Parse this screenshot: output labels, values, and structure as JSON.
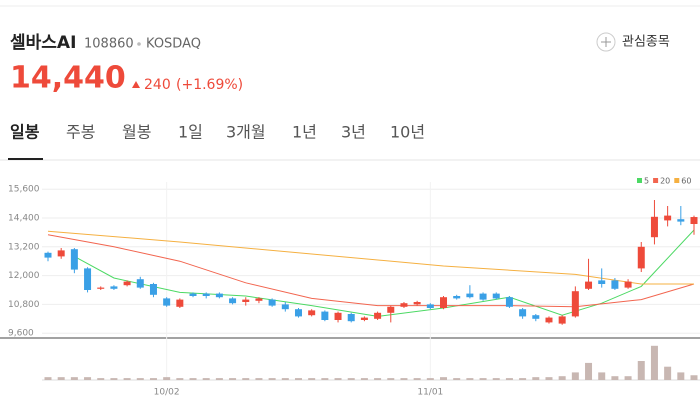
{
  "header": {
    "name": "셀바스AI",
    "code": "108860",
    "market": "KOSDAQ",
    "watch_label": "관심종목",
    "price": "14,440",
    "change": "240",
    "change_pct": "(+1.69%)"
  },
  "tabs": [
    "일봉",
    "주봉",
    "월봉",
    "1일",
    "3개월",
    "1년",
    "3년",
    "10년"
  ],
  "chart_data": {
    "type": "candlestick",
    "categories": [
      null,
      null,
      null,
      null,
      null,
      null,
      null,
      null,
      null,
      "10/02",
      null,
      null,
      null,
      null,
      null,
      null,
      null,
      null,
      null,
      null,
      null,
      null,
      null,
      null,
      null,
      null,
      null,
      null,
      null,
      "11/01",
      null,
      null,
      null,
      null,
      null,
      null,
      null,
      null,
      null,
      null,
      null,
      null,
      null,
      null,
      null,
      null,
      null,
      null,
      null,
      null
    ],
    "up_color": "#ee4a3a",
    "down_color": "#3aa0e6",
    "candles": [
      {
        "o": 12950,
        "h": 13000,
        "l": 12600,
        "c": 12750
      },
      {
        "o": 12800,
        "h": 13150,
        "l": 12700,
        "c": 13050
      },
      {
        "o": 13100,
        "h": 13150,
        "l": 12100,
        "c": 12250
      },
      {
        "o": 12300,
        "h": 12350,
        "l": 11300,
        "c": 11400
      },
      {
        "o": 11450,
        "h": 11550,
        "l": 11400,
        "c": 11500
      },
      {
        "o": 11550,
        "h": 11600,
        "l": 11400,
        "c": 11450
      },
      {
        "o": 11600,
        "h": 11800,
        "l": 11550,
        "c": 11750
      },
      {
        "o": 11850,
        "h": 11950,
        "l": 11450,
        "c": 11500
      },
      {
        "o": 11650,
        "h": 11700,
        "l": 11100,
        "c": 11200
      },
      {
        "o": 11050,
        "h": 11100,
        "l": 10700,
        "c": 10750
      },
      {
        "o": 10700,
        "h": 11050,
        "l": 10650,
        "c": 11000
      },
      {
        "o": 11250,
        "h": 11300,
        "l": 11100,
        "c": 11150
      },
      {
        "o": 11250,
        "h": 11300,
        "l": 11050,
        "c": 11150
      },
      {
        "o": 11250,
        "h": 11300,
        "l": 11050,
        "c": 11100
      },
      {
        "o": 11050,
        "h": 11100,
        "l": 10800,
        "c": 10850
      },
      {
        "o": 10900,
        "h": 11100,
        "l": 10750,
        "c": 11000
      },
      {
        "o": 10950,
        "h": 11100,
        "l": 10850,
        "c": 11050
      },
      {
        "o": 11000,
        "h": 11050,
        "l": 10700,
        "c": 10750
      },
      {
        "o": 10800,
        "h": 10900,
        "l": 10500,
        "c": 10600
      },
      {
        "o": 10600,
        "h": 10650,
        "l": 10250,
        "c": 10300
      },
      {
        "o": 10350,
        "h": 10600,
        "l": 10300,
        "c": 10550
      },
      {
        "o": 10500,
        "h": 10550,
        "l": 10100,
        "c": 10150
      },
      {
        "o": 10150,
        "h": 10500,
        "l": 10050,
        "c": 10450
      },
      {
        "o": 10400,
        "h": 10450,
        "l": 10050,
        "c": 10100
      },
      {
        "o": 10150,
        "h": 10300,
        "l": 10100,
        "c": 10250
      },
      {
        "o": 10200,
        "h": 10500,
        "l": 10150,
        "c": 10450
      },
      {
        "o": 10450,
        "h": 10750,
        "l": 10050,
        "c": 10700
      },
      {
        "o": 10700,
        "h": 10900,
        "l": 10650,
        "c": 10850
      },
      {
        "o": 10800,
        "h": 10950,
        "l": 10750,
        "c": 10900
      },
      {
        "o": 10800,
        "h": 10850,
        "l": 10600,
        "c": 10650
      },
      {
        "o": 10650,
        "h": 11150,
        "l": 10600,
        "c": 11100
      },
      {
        "o": 11150,
        "h": 11200,
        "l": 11000,
        "c": 11050
      },
      {
        "o": 11250,
        "h": 11600,
        "l": 11050,
        "c": 11100
      },
      {
        "o": 11250,
        "h": 11300,
        "l": 10950,
        "c": 11000
      },
      {
        "o": 11250,
        "h": 11300,
        "l": 11000,
        "c": 11050
      },
      {
        "o": 11100,
        "h": 11150,
        "l": 10650,
        "c": 10700
      },
      {
        "o": 10600,
        "h": 10650,
        "l": 10200,
        "c": 10300
      },
      {
        "o": 10350,
        "h": 10400,
        "l": 10100,
        "c": 10200
      },
      {
        "o": 10050,
        "h": 10300,
        "l": 10000,
        "c": 10250
      },
      {
        "o": 10000,
        "h": 10350,
        "l": 9950,
        "c": 10300
      },
      {
        "o": 10300,
        "h": 11550,
        "l": 10250,
        "c": 11350
      },
      {
        "o": 11450,
        "h": 12700,
        "l": 11400,
        "c": 11750
      },
      {
        "o": 11800,
        "h": 12300,
        "l": 11500,
        "c": 11650
      },
      {
        "o": 11800,
        "h": 11900,
        "l": 11400,
        "c": 11450
      },
      {
        "o": 11500,
        "h": 11850,
        "l": 11450,
        "c": 11750
      },
      {
        "o": 12300,
        "h": 13400,
        "l": 12150,
        "c": 13200
      },
      {
        "o": 13600,
        "h": 15150,
        "l": 13300,
        "c": 14450
      },
      {
        "o": 14300,
        "h": 14900,
        "l": 14050,
        "c": 14500
      },
      {
        "o": 14350,
        "h": 14900,
        "l": 14100,
        "c": 14250
      },
      {
        "o": 14150,
        "h": 14500,
        "l": 13700,
        "c": 14440
      }
    ],
    "moving_averages": [
      {
        "name": "5",
        "color": "#4cd964",
        "x": [
          2,
          5,
          10,
          15,
          20,
          25,
          30,
          35,
          39,
          42,
          45,
          49
        ],
        "values": [
          12800,
          11900,
          11300,
          11150,
          10750,
          10300,
          10650,
          11100,
          10350,
          10850,
          11550,
          13900
        ]
      },
      {
        "name": "20",
        "color": "#f2654f",
        "x": [
          0,
          5,
          10,
          15,
          20,
          25,
          30,
          35,
          40,
          45,
          49
        ],
        "values": [
          13700,
          13200,
          12600,
          11700,
          11050,
          10750,
          10750,
          10750,
          10700,
          11000,
          11650
        ]
      },
      {
        "name": "60",
        "color": "#f5b041",
        "x": [
          0,
          10,
          20,
          30,
          40,
          45,
          49
        ],
        "values": [
          13850,
          13400,
          12900,
          12400,
          12050,
          11650,
          11650
        ]
      }
    ],
    "volume": [
      3,
      3,
      3,
      3,
      2,
      2,
      2,
      2,
      2,
      3,
      2,
      2,
      2,
      2,
      2,
      2,
      2,
      2,
      2,
      2,
      2,
      2,
      2,
      2,
      2,
      2,
      2,
      2,
      2,
      2,
      3,
      2,
      2,
      2,
      2,
      2,
      2,
      3,
      3,
      4,
      8,
      18,
      8,
      4,
      4,
      20,
      36,
      14,
      8,
      5
    ],
    "volume_ylim": [
      0,
      40
    ],
    "volume_color": "#c8b7b2",
    "ylim": [
      9400,
      15900
    ],
    "yticks": [
      {
        "value": 15600,
        "label": "15,600"
      },
      {
        "value": 14400,
        "label": "14,400"
      },
      {
        "value": 13200,
        "label": "13,200"
      },
      {
        "value": 12000,
        "label": "12,000"
      },
      {
        "value": 10800,
        "label": "10,800"
      },
      {
        "value": 9600,
        "label": "9,600"
      }
    ],
    "grid": true
  }
}
